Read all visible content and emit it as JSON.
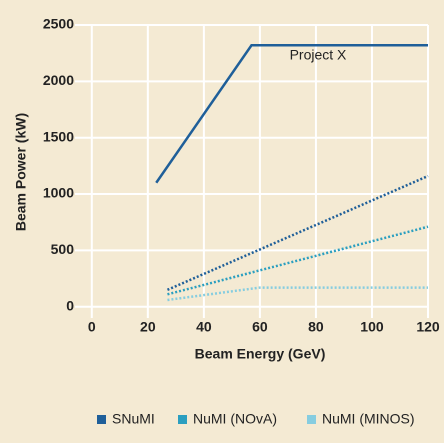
{
  "chart_data": {
    "type": "line",
    "xlabel": "Beam Energy (GeV)",
    "ylabel": "Beam Power (kW)",
    "xlim": [
      -6,
      120
    ],
    "ylim": [
      -100,
      2500
    ],
    "xticks": [
      0,
      20,
      40,
      60,
      80,
      100,
      120
    ],
    "yticks": [
      0,
      500,
      1000,
      1500,
      2000,
      2500
    ],
    "grid": true,
    "project_x": {
      "label": "Project X",
      "color": "#1f5f99",
      "x": [
        23,
        57,
        120
      ],
      "values": [
        1100,
        2320,
        2320
      ]
    },
    "series": [
      {
        "name": "SNuMI",
        "color": "#1f5f99",
        "x": [
          27,
          120
        ],
        "values": [
          150,
          1160
        ]
      },
      {
        "name": "NuMI (NOvA)",
        "color": "#2b9fc0",
        "x": [
          27,
          120
        ],
        "values": [
          110,
          710
        ]
      },
      {
        "name": "NuMI (MINOS)",
        "color": "#86cde0",
        "x": [
          27,
          60,
          120
        ],
        "values": [
          60,
          170,
          170
        ]
      }
    ]
  }
}
